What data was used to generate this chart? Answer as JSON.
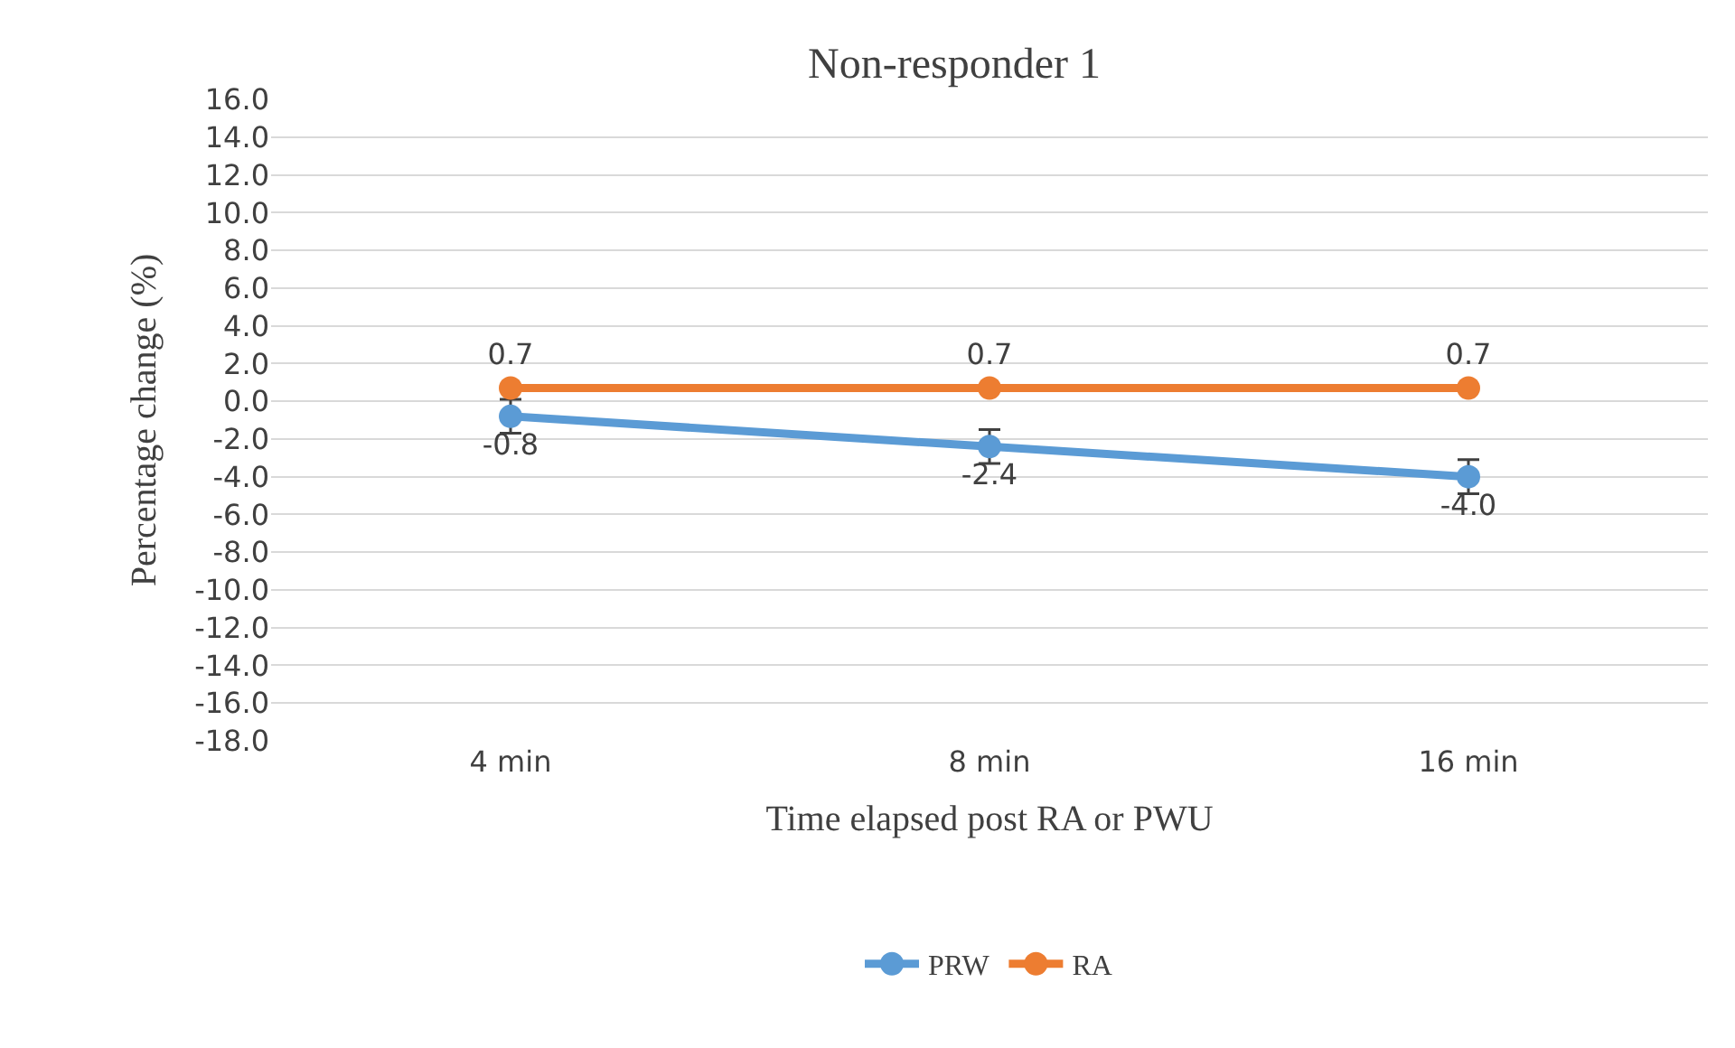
{
  "chart_data": {
    "type": "line",
    "title": "Non-responder 1",
    "xlabel": "Time elapsed post RA or PWU",
    "ylabel": "Percentage change (%)",
    "categories": [
      "4 min",
      "8 min",
      "16 min"
    ],
    "series": [
      {
        "name": "PRW",
        "color": "#5b9bd5",
        "values": [
          -0.8,
          -2.4,
          -4.0
        ],
        "errors": [
          0.9,
          0.9,
          0.9
        ],
        "value_labels": [
          "-0.8",
          "-2.4",
          "-4.0"
        ]
      },
      {
        "name": "RA",
        "color": "#ed7d31",
        "values": [
          0.7,
          0.7,
          0.7
        ],
        "value_labels": [
          "0.7",
          "0.7",
          "0.7"
        ]
      }
    ],
    "ylim": [
      -18,
      16
    ],
    "yticks": [
      {
        "value": 16,
        "label": "16.0"
      },
      {
        "value": 14,
        "label": "14.0"
      },
      {
        "value": 12,
        "label": "12.0"
      },
      {
        "value": 10,
        "label": "10.0"
      },
      {
        "value": 8,
        "label": "8.0"
      },
      {
        "value": 6,
        "label": "6.0"
      },
      {
        "value": 4,
        "label": "4.0"
      },
      {
        "value": 2,
        "label": "2.0"
      },
      {
        "value": 0,
        "label": "0.0"
      },
      {
        "value": -2,
        "label": "-2.0"
      },
      {
        "value": -4,
        "label": "-4.0"
      },
      {
        "value": -6,
        "label": "-6.0"
      },
      {
        "value": -8,
        "label": "-8.0"
      },
      {
        "value": -10,
        "label": "-10.0"
      },
      {
        "value": -12,
        "label": "-12.0"
      },
      {
        "value": -14,
        "label": "-14.0"
      },
      {
        "value": -16,
        "label": "-16.0"
      },
      {
        "value": -18,
        "label": "-18.0"
      }
    ],
    "grid": "y",
    "legend": "bottom",
    "marker": "circle",
    "line_style": "solid"
  }
}
